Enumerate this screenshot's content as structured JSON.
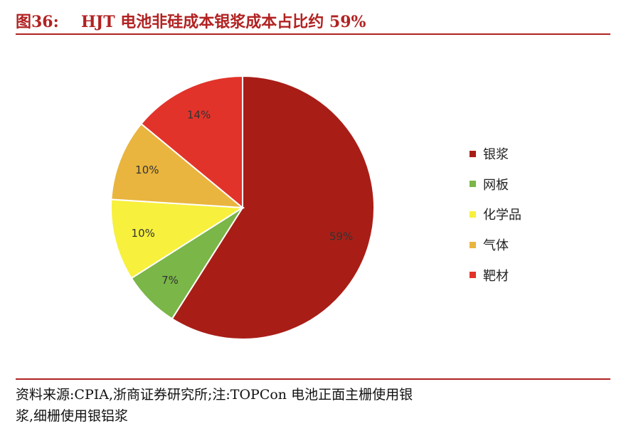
{
  "header": {
    "figure_number": "图36:",
    "title_text": "HJT 电池非硅成本银浆成本占比约 59%"
  },
  "chart_data": {
    "type": "pie",
    "categories": [
      "银浆",
      "网板",
      "化学品",
      "气体",
      "靶材"
    ],
    "values": [
      59,
      7,
      10,
      10,
      14
    ],
    "value_labels": [
      "59%",
      "7%",
      "10%",
      "10%",
      "14%"
    ],
    "colors": [
      "#a81e17",
      "#7ab648",
      "#f7f03c",
      "#e9b53e",
      "#e2332a"
    ],
    "legend_position": "right",
    "start_angle_deg": 0,
    "direction": "clockwise"
  },
  "footer": {
    "source_line1": "资料来源:CPIA,浙商证券研究所;注:TOPCon 电池正面主栅使用银",
    "source_line2": "浆,细栅使用银铝浆"
  }
}
